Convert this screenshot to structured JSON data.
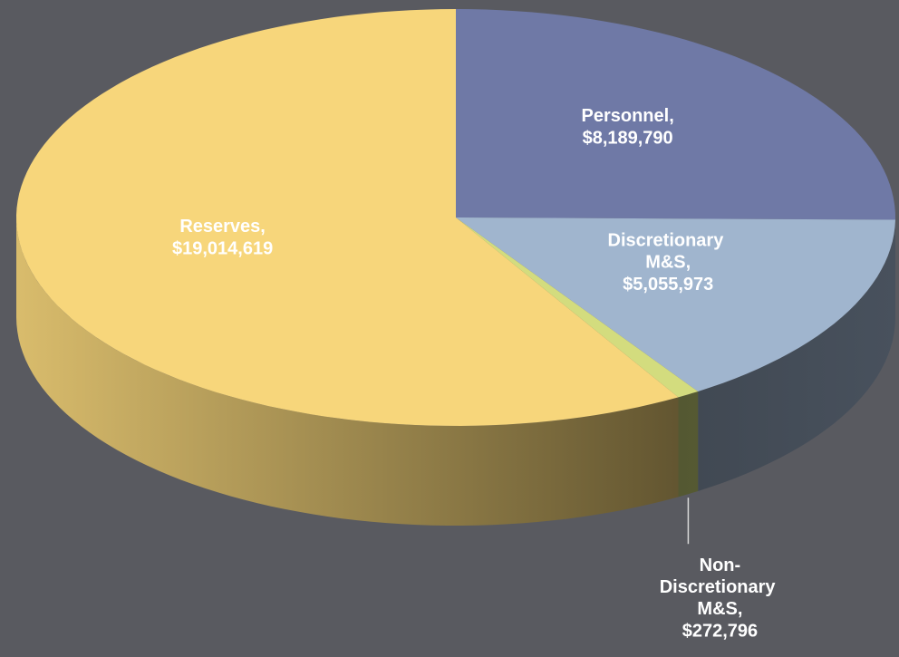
{
  "chart_data": {
    "type": "pie",
    "categories": [
      "Personnel,",
      "Discretionary M&S,",
      "Non-Discretionary M&S,",
      "Reserves,"
    ],
    "values": [
      8189790,
      5055973,
      272796,
      19014619
    ],
    "value_labels": [
      "$8,189,790",
      "$5,055,973",
      "$272,796",
      "$19,014,619"
    ],
    "colors": [
      "#6f79a6",
      "#a0b5ce",
      "#d3dc7e",
      "#f7d67b"
    ]
  }
}
